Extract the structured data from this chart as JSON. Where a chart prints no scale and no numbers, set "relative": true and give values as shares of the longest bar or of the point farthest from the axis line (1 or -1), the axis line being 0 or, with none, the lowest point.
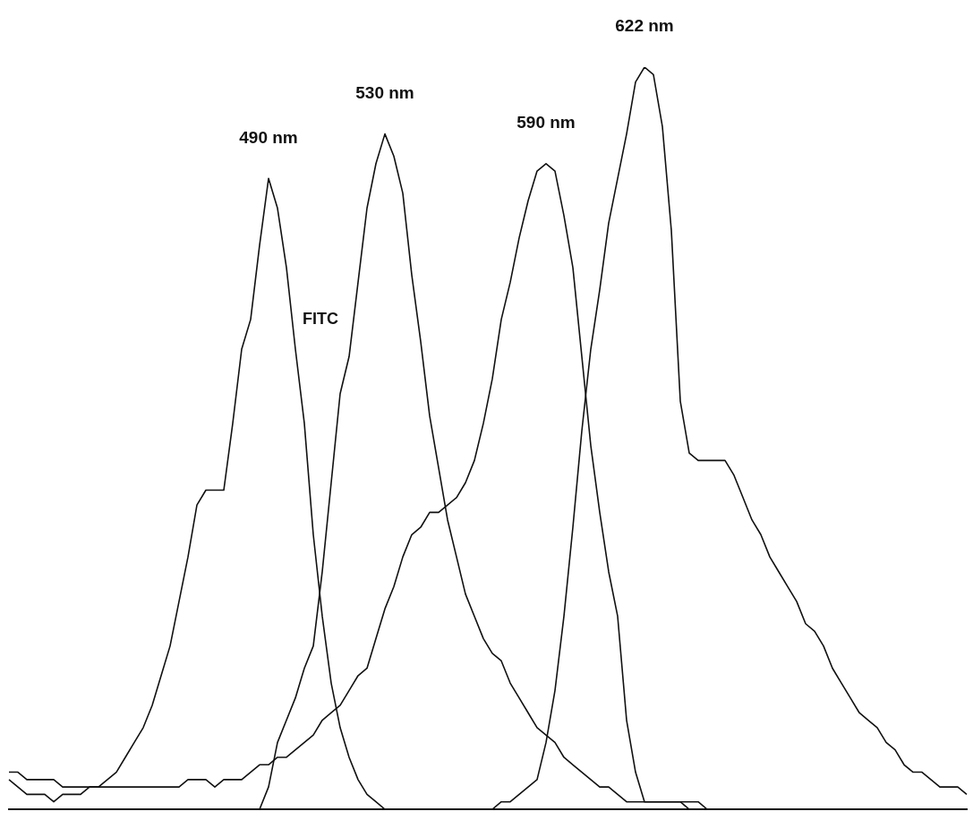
{
  "chart_data": {
    "type": "line",
    "relative": true,
    "categories": [
      null,
      null,
      null,
      null,
      null,
      null,
      null,
      null,
      null,
      null,
      null,
      null,
      null,
      null,
      null,
      null,
      null,
      null,
      null,
      null,
      null,
      null,
      null,
      null,
      null,
      null,
      null,
      null,
      null,
      null,
      null,
      null,
      null,
      null,
      null,
      null,
      null,
      null,
      null,
      null,
      null,
      null,
      null,
      null,
      null,
      null,
      null,
      null,
      null,
      null,
      null,
      null,
      null,
      null,
      null,
      null,
      null,
      null,
      null,
      null,
      null,
      null,
      null,
      null,
      null,
      null,
      null,
      null,
      null,
      null,
      null,
      null,
      null,
      null,
      null,
      null,
      null,
      null,
      null,
      null,
      null,
      null,
      null,
      null,
      null,
      null,
      null,
      null,
      null,
      null,
      null,
      null,
      null,
      null,
      null,
      null,
      null,
      null,
      null,
      null,
      null,
      null,
      null,
      null,
      null,
      null,
      null,
      null
    ],
    "series": [
      {
        "name": "490 nm",
        "color": "#111111",
        "values": [
          0.04,
          0.03,
          0.02,
          0.02,
          0.02,
          0.01,
          0.02,
          0.02,
          0.02,
          0.03,
          0.03,
          0.04,
          0.05,
          0.07,
          0.09,
          0.11,
          0.14,
          0.18,
          0.22,
          0.28,
          0.34,
          0.41,
          0.43,
          0.43,
          0.43,
          0.52,
          0.62,
          0.66,
          0.76,
          0.85,
          0.81,
          0.73,
          0.62,
          0.52,
          0.37,
          0.26,
          0.17,
          0.11,
          0.07,
          0.04,
          0.02,
          0.01,
          0,
          0,
          0,
          0,
          0,
          0,
          0,
          0,
          0,
          0,
          0,
          0,
          0,
          0,
          0,
          0,
          0,
          0,
          0,
          0,
          0,
          0,
          0,
          0,
          0,
          0,
          0,
          0,
          0,
          0,
          0,
          0,
          0,
          0,
          0,
          0,
          0,
          0,
          0,
          0,
          0,
          0,
          0,
          0,
          0,
          0,
          0,
          0,
          0,
          0,
          0,
          0,
          0,
          0,
          0,
          0,
          0,
          0,
          0,
          0,
          0,
          0,
          0,
          0,
          0,
          0
        ]
      },
      {
        "name": "530 nm",
        "color": "#111111",
        "values": [
          0,
          0,
          0,
          0,
          0,
          0,
          0,
          0,
          0,
          0,
          0,
          0,
          0,
          0,
          0,
          0,
          0,
          0,
          0,
          0,
          0,
          0,
          0,
          0,
          0,
          0,
          0,
          0,
          0,
          0.03,
          0.09,
          0.12,
          0.15,
          0.19,
          0.22,
          0.32,
          0.44,
          0.56,
          0.61,
          0.71,
          0.81,
          0.87,
          0.91,
          0.88,
          0.83,
          0.72,
          0.63,
          0.53,
          0.46,
          0.39,
          0.34,
          0.29,
          0.26,
          0.23,
          0.21,
          0.2,
          0.17,
          0.15,
          0.13,
          0.11,
          0.1,
          0.09,
          0.07,
          0.06,
          0.05,
          0.04,
          0.03,
          0.03,
          0.02,
          0.01,
          0.01,
          0.01,
          0.01,
          0.01,
          0.01,
          0.01,
          0,
          0,
          0,
          0,
          0,
          0,
          0,
          0,
          0,
          0,
          0,
          0,
          0,
          0,
          0,
          0,
          0,
          0,
          0,
          0,
          0,
          0,
          0,
          0,
          0,
          0,
          0,
          0,
          0,
          0,
          0,
          0
        ]
      },
      {
        "name": "590 nm",
        "color": "#111111",
        "values": [
          0.05,
          0.05,
          0.04,
          0.04,
          0.04,
          0.04,
          0.03,
          0.03,
          0.03,
          0.03,
          0.03,
          0.03,
          0.03,
          0.03,
          0.03,
          0.03,
          0.03,
          0.03,
          0.03,
          0.03,
          0.04,
          0.04,
          0.04,
          0.03,
          0.04,
          0.04,
          0.04,
          0.05,
          0.06,
          0.06,
          0.07,
          0.07,
          0.08,
          0.09,
          0.1,
          0.12,
          0.13,
          0.14,
          0.16,
          0.18,
          0.19,
          0.23,
          0.27,
          0.3,
          0.34,
          0.37,
          0.38,
          0.4,
          0.4,
          0.41,
          0.42,
          0.44,
          0.47,
          0.52,
          0.58,
          0.66,
          0.71,
          0.77,
          0.82,
          0.86,
          0.87,
          0.86,
          0.8,
          0.73,
          0.61,
          0.49,
          0.4,
          0.32,
          0.26,
          0.12,
          0.05,
          0.01,
          0.01,
          0.01,
          0.01,
          0.01,
          0.01,
          0.01,
          0,
          0,
          0,
          0,
          0,
          0,
          0,
          0,
          0,
          0,
          0,
          0,
          0,
          0,
          0,
          0,
          0,
          0,
          0,
          0,
          0,
          0,
          0,
          0,
          0,
          0,
          0,
          0,
          0,
          0
        ]
      },
      {
        "name": "622 nm",
        "color": "#111111",
        "values": [
          0,
          0,
          0,
          0,
          0,
          0,
          0,
          0,
          0,
          0,
          0,
          0,
          0,
          0,
          0,
          0,
          0,
          0,
          0,
          0,
          0,
          0,
          0,
          0,
          0,
          0,
          0,
          0,
          0,
          0,
          0,
          0,
          0,
          0,
          0,
          0,
          0,
          0,
          0,
          0,
          0,
          0,
          0,
          0,
          0,
          0,
          0,
          0,
          0,
          0,
          0,
          0,
          0,
          0,
          0,
          0.01,
          0.01,
          0.02,
          0.03,
          0.04,
          0.09,
          0.16,
          0.26,
          0.38,
          0.51,
          0.62,
          0.7,
          0.79,
          0.85,
          0.91,
          0.98,
          1,
          0.99,
          0.92,
          0.78,
          0.55,
          0.48,
          0.47,
          0.47,
          0.47,
          0.47,
          0.45,
          0.42,
          0.39,
          0.37,
          0.34,
          0.32,
          0.3,
          0.28,
          0.25,
          0.24,
          0.22,
          0.19,
          0.17,
          0.15,
          0.13,
          0.12,
          0.11,
          0.09,
          0.08,
          0.06,
          0.05,
          0.05,
          0.04,
          0.03,
          0.03,
          0.03,
          0.02
        ]
      }
    ],
    "annotations": [
      "FITC"
    ]
  }
}
